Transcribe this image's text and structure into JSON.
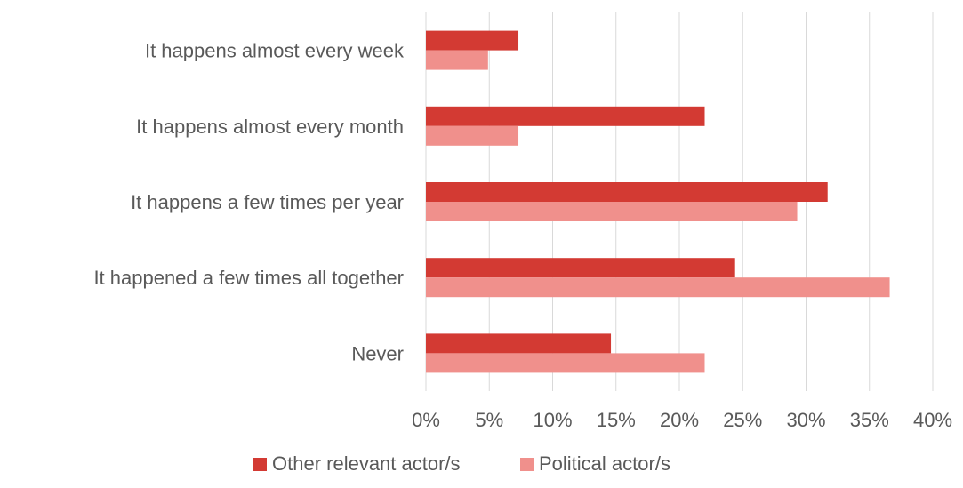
{
  "chart_data": {
    "type": "bar",
    "orientation": "horizontal",
    "title": "",
    "xlabel": "",
    "ylabel": "",
    "xlim": [
      0,
      40
    ],
    "x_tick_step": 5,
    "x_tick_labels": [
      "0%",
      "5%",
      "10%",
      "15%",
      "20%",
      "25%",
      "30%",
      "35%",
      "40%"
    ],
    "value_unit": "%",
    "grid": "vertical",
    "legend_position": "bottom",
    "categories": [
      "It happens almost every week",
      "It happens almost every month",
      "It happens a few times per year",
      "It happened a few times all together",
      "Never"
    ],
    "series": [
      {
        "name": "Other relevant actor/s",
        "color": "#d33a33",
        "values": [
          7.3,
          22.0,
          31.7,
          24.4,
          14.6
        ]
      },
      {
        "name": "Political actor/s",
        "color": "#f0908c",
        "values": [
          4.9,
          7.3,
          29.3,
          36.6,
          22.0
        ]
      }
    ]
  }
}
